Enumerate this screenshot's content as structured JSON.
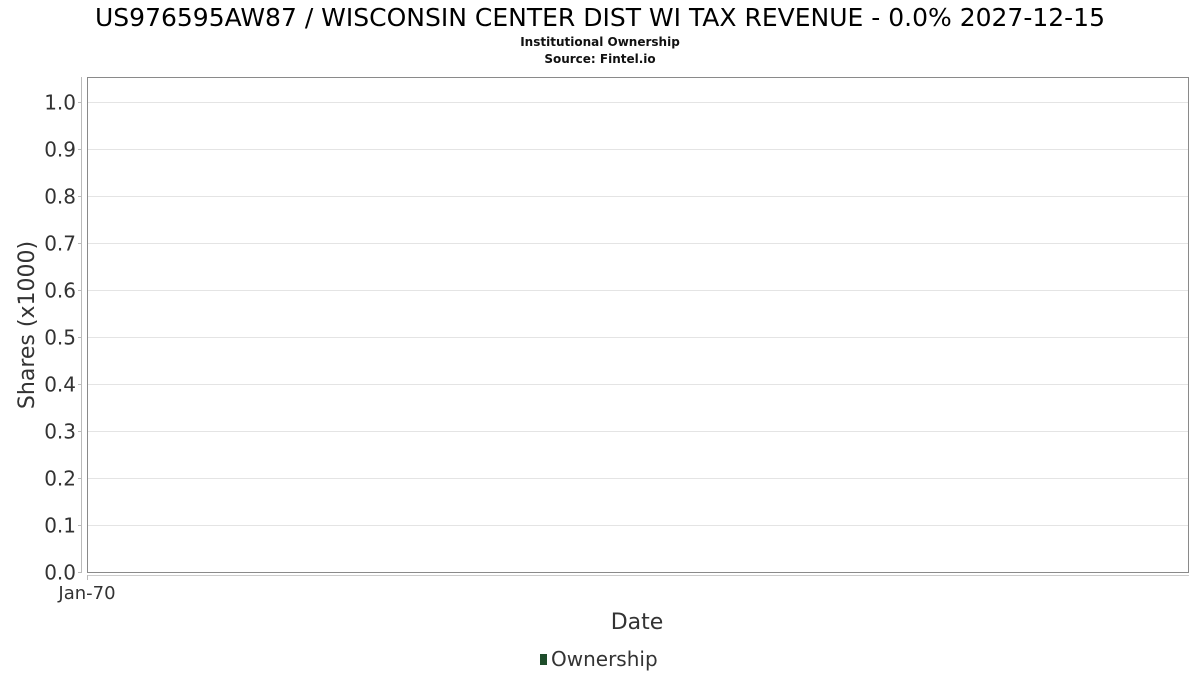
{
  "chart": {
    "title": "US976595AW87 / WISCONSIN CENTER DIST WI TAX REVENUE - 0.0% 2027-12-15",
    "subtitle": "Institutional Ownership",
    "source": "Source: Fintel.io"
  },
  "chart_data": {
    "type": "area",
    "title": "US976595AW87 / WISCONSIN CENTER DIST WI TAX REVENUE - 0.0% 2027-12-15",
    "subtitle": "Institutional Ownership",
    "xlabel": "Date",
    "ylabel": "Shares (x1000)",
    "x_ticks": [
      "Jan-70"
    ],
    "y_ticks": [
      "0.0",
      "0.1",
      "0.2",
      "0.3",
      "0.4",
      "0.5",
      "0.6",
      "0.7",
      "0.8",
      "0.9",
      "1.0"
    ],
    "ylim": [
      0,
      1.05
    ],
    "grid": true,
    "legend_position": "bottom-center",
    "series": [
      {
        "name": "Ownership",
        "color": "#1e4d2b",
        "x": [],
        "values": []
      }
    ]
  }
}
